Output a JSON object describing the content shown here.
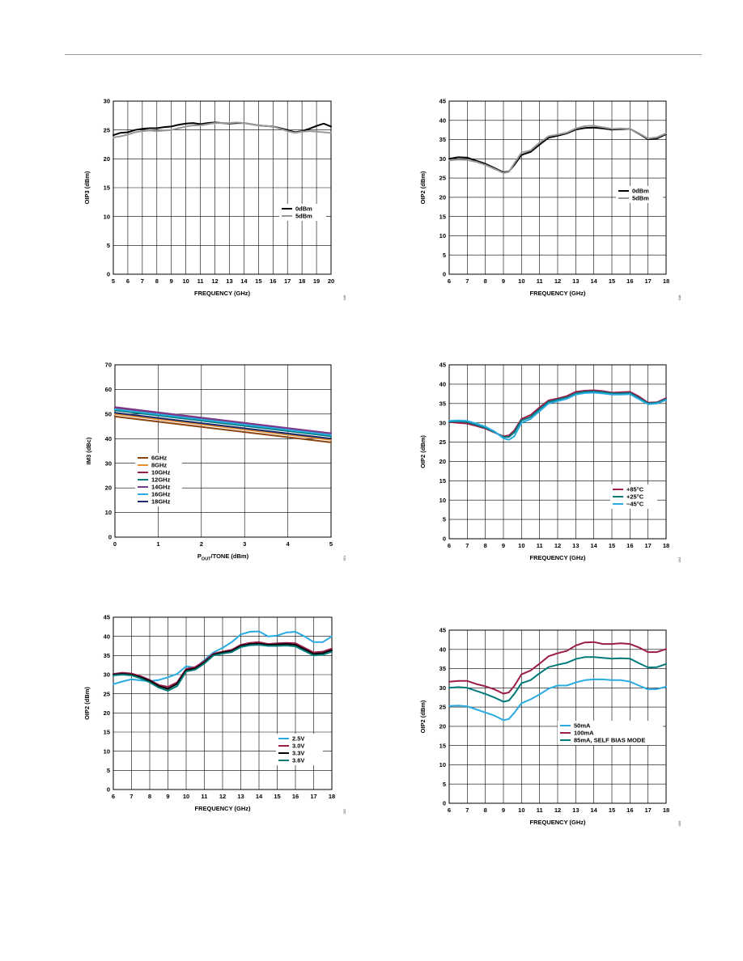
{
  "chart_data": [
    {
      "id": "c1",
      "type": "line",
      "xlabel": "FREQUENCY (GHz)",
      "ylabel": "OIP3 (dBm)",
      "xlim": [
        5,
        20
      ],
      "ylim": [
        0,
        30
      ],
      "xticks": [
        5,
        6,
        7,
        8,
        9,
        10,
        11,
        12,
        13,
        14,
        15,
        16,
        17,
        18,
        19,
        20
      ],
      "yticks": [
        0,
        5,
        10,
        15,
        20,
        25,
        30
      ],
      "grid": true,
      "legend_position": "right-middle",
      "fig_id": "046",
      "series": [
        {
          "name": "0dBm",
          "color": "#000000",
          "x": [
            5,
            5.5,
            6,
            6.5,
            7,
            7.5,
            8,
            8.5,
            9,
            9.5,
            10,
            10.5,
            11,
            11.5,
            12,
            12.5,
            13,
            13.5,
            14,
            14.5,
            15,
            15.5,
            16,
            16.5,
            17,
            17.5,
            18,
            18.5,
            19,
            19.5,
            20
          ],
          "y": [
            24.1,
            24.5,
            24.6,
            25.0,
            25.2,
            25.3,
            25.3,
            25.5,
            25.6,
            25.9,
            26.1,
            26.2,
            26.0,
            26.2,
            26.3,
            26.2,
            26.1,
            26.2,
            26.2,
            26.0,
            25.8,
            25.7,
            25.6,
            25.3,
            25.0,
            24.6,
            24.8,
            25.2,
            25.7,
            26.1,
            25.6
          ]
        },
        {
          "name": "5dBm",
          "color": "#999999",
          "x": [
            5,
            5.5,
            6,
            6.5,
            7,
            7.5,
            8,
            8.5,
            9,
            9.5,
            10,
            10.5,
            11,
            11.5,
            12,
            12.5,
            13,
            13.5,
            14,
            14.5,
            15,
            15.5,
            16,
            16.5,
            17,
            17.5,
            18,
            18.5,
            19,
            19.5,
            20
          ],
          "y": [
            23.7,
            23.9,
            24.2,
            24.6,
            24.8,
            24.9,
            24.8,
            24.9,
            25.0,
            25.3,
            25.6,
            25.8,
            25.8,
            26.0,
            26.2,
            26.2,
            26.2,
            26.3,
            26.2,
            26.0,
            25.8,
            25.7,
            25.6,
            25.2,
            24.8,
            24.5,
            24.7,
            24.8,
            24.7,
            24.6,
            24.5
          ]
        }
      ]
    },
    {
      "id": "c2",
      "type": "line",
      "xlabel": "FREQUENCY (GHz)",
      "ylabel": "OIP2 (dBm)",
      "xlim": [
        6,
        18
      ],
      "ylim": [
        0,
        45
      ],
      "xticks": [
        6,
        7,
        8,
        9,
        10,
        11,
        12,
        13,
        14,
        15,
        16,
        17,
        18
      ],
      "yticks": [
        0,
        5,
        10,
        15,
        20,
        25,
        30,
        35,
        40,
        45
      ],
      "grid": true,
      "legend_position": "right-middle",
      "fig_id": "048",
      "series": [
        {
          "name": "0dBm",
          "color": "#000000",
          "x": [
            6,
            6.5,
            7,
            7.5,
            8,
            8.5,
            9,
            9.3,
            9.6,
            10,
            10.5,
            11,
            11.5,
            12,
            12.5,
            13,
            13.5,
            14,
            14.5,
            15,
            15.5,
            16,
            16.5,
            17,
            17.5,
            18
          ],
          "y": [
            30.0,
            30.4,
            30.3,
            29.5,
            28.7,
            27.6,
            26.5,
            26.7,
            28.4,
            31.0,
            31.8,
            33.7,
            35.5,
            36.0,
            36.6,
            37.6,
            38.0,
            38.1,
            37.9,
            37.6,
            37.7,
            37.8,
            36.5,
            35.1,
            35.3,
            36.4
          ]
        },
        {
          "name": "5dBm",
          "color": "#999999",
          "x": [
            6,
            6.5,
            7,
            7.5,
            8,
            8.5,
            9,
            9.3,
            9.6,
            10,
            10.5,
            11,
            11.5,
            12,
            12.5,
            13,
            13.5,
            14,
            14.5,
            15,
            15.5,
            16,
            16.5,
            17,
            17.5,
            18
          ],
          "y": [
            29.6,
            29.8,
            29.7,
            29.2,
            28.4,
            27.4,
            26.3,
            26.6,
            28.8,
            31.6,
            32.2,
            34.2,
            35.9,
            36.3,
            36.8,
            37.9,
            38.5,
            38.6,
            38.2,
            37.8,
            37.9,
            37.8,
            36.6,
            35.3,
            35.6,
            36.6
          ]
        }
      ]
    },
    {
      "id": "c3",
      "type": "line",
      "xlabel": "POUT/TONE (dBm)",
      "xlabel_parts": [
        "P",
        "OUT",
        "/TONE (dBm)"
      ],
      "ylabel": "IM3 (dBc)",
      "xlim": [
        0,
        5
      ],
      "ylim": [
        0,
        70
      ],
      "xticks": [
        0,
        1,
        2,
        3,
        4,
        5
      ],
      "yticks": [
        0,
        10,
        20,
        30,
        40,
        50,
        60,
        70
      ],
      "grid": true,
      "legend_position": "left-middle",
      "fig_id": "051",
      "series": [
        {
          "name": "6GHz",
          "color": "#8b4513",
          "x": [
            0,
            5
          ],
          "y": [
            49.0,
            38.5
          ]
        },
        {
          "name": "8GHz",
          "color": "#e8902e",
          "x": [
            0,
            5
          ],
          "y": [
            50.0,
            39.5
          ]
        },
        {
          "name": "10GHz",
          "color": "#9b1d4d",
          "x": [
            0,
            5
          ],
          "y": [
            52.5,
            42.0
          ]
        },
        {
          "name": "12GHz",
          "color": "#007a7a",
          "x": [
            0,
            5
          ],
          "y": [
            51.5,
            41.0
          ]
        },
        {
          "name": "14GHz",
          "color": "#7b3a8c",
          "x": [
            0,
            5
          ],
          "y": [
            52.8,
            42.2
          ]
        },
        {
          "name": "16GHz",
          "color": "#29abe2",
          "x": [
            0,
            5
          ],
          "y": [
            52.0,
            41.5
          ]
        },
        {
          "name": "18GHz",
          "color": "#1a2a6c",
          "x": [
            0,
            5
          ],
          "y": [
            50.5,
            40.0
          ]
        }
      ]
    },
    {
      "id": "c4",
      "type": "line",
      "xlabel": "FREQUENCY (GHz)",
      "ylabel": "OIP2 (dBm)",
      "xlim": [
        6,
        18
      ],
      "ylim": [
        0,
        45
      ],
      "xticks": [
        6,
        7,
        8,
        9,
        10,
        11,
        12,
        13,
        14,
        15,
        16,
        17,
        18
      ],
      "yticks": [
        0,
        5,
        10,
        15,
        20,
        25,
        30,
        35,
        40,
        45
      ],
      "grid": true,
      "legend_position": "bottom-right",
      "fig_id": "054",
      "series": [
        {
          "name": "+85°C",
          "color": "#9b1d4d",
          "x": [
            6,
            6.5,
            7,
            7.5,
            8,
            8.5,
            9,
            9.3,
            9.6,
            10,
            10.5,
            11,
            11.5,
            12,
            12.5,
            13,
            13.5,
            14,
            14.5,
            15,
            15.5,
            16,
            16.5,
            17,
            17.5,
            18
          ],
          "y": [
            30.2,
            30.0,
            29.8,
            29.2,
            28.5,
            27.5,
            26.5,
            26.7,
            28.0,
            31.0,
            32.0,
            34.0,
            35.8,
            36.3,
            36.9,
            38.0,
            38.3,
            38.4,
            38.2,
            37.8,
            37.9,
            38.0,
            36.8,
            35.2,
            35.3,
            36.4
          ]
        },
        {
          "name": "+25°C",
          "color": "#007a7a",
          "x": [
            6,
            6.5,
            7,
            7.5,
            8,
            8.5,
            9,
            9.3,
            9.6,
            10,
            10.5,
            11,
            11.5,
            12,
            12.5,
            13,
            13.5,
            14,
            14.5,
            15,
            15.5,
            16,
            16.5,
            17,
            17.5,
            18
          ],
          "y": [
            30.3,
            30.4,
            30.2,
            29.5,
            28.7,
            27.6,
            26.3,
            26.3,
            27.5,
            30.6,
            31.5,
            33.5,
            35.4,
            36.0,
            36.5,
            37.6,
            38.0,
            38.1,
            37.9,
            37.6,
            37.6,
            37.7,
            36.4,
            35.0,
            35.2,
            36.1
          ]
        },
        {
          "name": "−45°C",
          "color": "#29abe2",
          "x": [
            6,
            6.5,
            7,
            7.5,
            8,
            8.5,
            9,
            9.3,
            9.6,
            10,
            10.5,
            11,
            11.5,
            12,
            12.5,
            13,
            13.5,
            14,
            14.5,
            15,
            15.5,
            16,
            16.5,
            17,
            17.5,
            18
          ],
          "y": [
            30.5,
            30.6,
            30.5,
            29.8,
            29.0,
            27.8,
            26.0,
            25.6,
            26.5,
            30.0,
            31.0,
            33.0,
            35.0,
            35.6,
            36.2,
            37.3,
            37.7,
            37.8,
            37.6,
            37.3,
            37.3,
            37.4,
            36.1,
            34.8,
            35.0,
            35.9
          ]
        }
      ]
    },
    {
      "id": "c5",
      "type": "line",
      "xlabel": "FREQUENCY (GHz)",
      "ylabel": "OIP2 (dBm)",
      "xlim": [
        6,
        18
      ],
      "ylim": [
        0,
        45
      ],
      "xticks": [
        6,
        7,
        8,
        9,
        10,
        11,
        12,
        13,
        14,
        15,
        16,
        17,
        18
      ],
      "yticks": [
        0,
        5,
        10,
        15,
        20,
        25,
        30,
        35,
        40,
        45
      ],
      "grid": true,
      "legend_position": "bottom-right",
      "fig_id": "052",
      "series": [
        {
          "name": "2.5V",
          "color": "#29abe2",
          "x": [
            6,
            6.5,
            7,
            7.5,
            8,
            8.5,
            9,
            9.5,
            10,
            10.5,
            11,
            11.5,
            12,
            12.5,
            13,
            13.5,
            14,
            14.5,
            15,
            15.5,
            16,
            16.5,
            17,
            17.5,
            18
          ],
          "y": [
            27.5,
            28.2,
            28.8,
            28.5,
            28.3,
            28.6,
            29.3,
            30.2,
            32.2,
            31.8,
            33.8,
            35.8,
            37.0,
            38.5,
            40.5,
            41.2,
            41.3,
            40.0,
            40.2,
            41.0,
            41.2,
            40.0,
            38.5,
            38.5,
            40.0
          ]
        },
        {
          "name": "3.0V",
          "color": "#9b1d4d",
          "x": [
            6,
            6.5,
            7,
            7.5,
            8,
            8.5,
            9,
            9.5,
            10,
            10.5,
            11,
            11.5,
            12,
            12.5,
            13,
            13.5,
            14,
            14.5,
            15,
            15.5,
            16,
            16.5,
            17,
            17.5,
            18
          ],
          "y": [
            30.2,
            30.5,
            30.3,
            29.6,
            28.6,
            27.3,
            26.8,
            28.0,
            31.5,
            32.0,
            33.5,
            35.5,
            36.0,
            36.5,
            37.8,
            38.3,
            38.5,
            38.0,
            38.2,
            38.3,
            38.2,
            37.0,
            35.8,
            36.0,
            36.8
          ]
        },
        {
          "name": "3.3V",
          "color": "#000000",
          "x": [
            6,
            6.5,
            7,
            7.5,
            8,
            8.5,
            9,
            9.5,
            10,
            10.5,
            11,
            11.5,
            12,
            12.5,
            13,
            13.5,
            14,
            14.5,
            15,
            15.5,
            16,
            16.5,
            17,
            17.5,
            18
          ],
          "y": [
            30.0,
            30.2,
            30.0,
            29.3,
            28.4,
            27.0,
            26.3,
            27.6,
            31.2,
            31.6,
            33.2,
            35.2,
            35.8,
            36.2,
            37.5,
            38.0,
            38.1,
            37.8,
            37.9,
            38.0,
            37.8,
            36.6,
            35.4,
            35.6,
            36.4
          ]
        },
        {
          "name": "3.6V",
          "color": "#007a7a",
          "x": [
            6,
            6.5,
            7,
            7.5,
            8,
            8.5,
            9,
            9.5,
            10,
            10.5,
            11,
            11.5,
            12,
            12.5,
            13,
            13.5,
            14,
            14.5,
            15,
            15.5,
            16,
            16.5,
            17,
            17.5,
            18
          ],
          "y": [
            29.8,
            30.0,
            29.8,
            29.0,
            28.0,
            26.6,
            25.8,
            27.0,
            30.8,
            31.3,
            32.9,
            35.0,
            35.5,
            35.9,
            37.2,
            37.7,
            37.8,
            37.5,
            37.5,
            37.6,
            37.4,
            36.2,
            35.0,
            35.2,
            36.0
          ]
        }
      ]
    },
    {
      "id": "c6",
      "type": "line",
      "xlabel": "FREQUENCY (GHz)",
      "ylabel": "OIP2 (dBm)",
      "xlim": [
        6,
        18
      ],
      "ylim": [
        0,
        45
      ],
      "xticks": [
        6,
        7,
        8,
        9,
        10,
        11,
        12,
        13,
        14,
        15,
        16,
        17,
        18
      ],
      "yticks": [
        0,
        5,
        10,
        15,
        20,
        25,
        30,
        35,
        40,
        45
      ],
      "grid": true,
      "legend_position": "bottom-right",
      "fig_id": "056",
      "series": [
        {
          "name": "50mA",
          "color": "#29abe2",
          "x": [
            6,
            6.5,
            7,
            7.5,
            8,
            8.5,
            9,
            9.3,
            9.6,
            10,
            10.5,
            11,
            11.5,
            12,
            12.5,
            13,
            13.5,
            14,
            14.5,
            15,
            15.5,
            16,
            16.5,
            17,
            17.5,
            18
          ],
          "y": [
            25.3,
            25.4,
            25.2,
            24.4,
            23.6,
            22.8,
            21.6,
            21.9,
            23.5,
            26.0,
            27.0,
            28.3,
            29.8,
            30.6,
            30.6,
            31.4,
            32.0,
            32.2,
            32.2,
            32.0,
            32.0,
            31.6,
            30.6,
            29.6,
            29.7,
            30.3
          ]
        },
        {
          "name": "100mA",
          "color": "#9b1d4d",
          "x": [
            6,
            6.5,
            7,
            7.5,
            8,
            8.5,
            9,
            9.3,
            9.6,
            10,
            10.5,
            11,
            11.5,
            12,
            12.5,
            13,
            13.5,
            14,
            14.5,
            15,
            15.5,
            16,
            16.5,
            17,
            17.5,
            18
          ],
          "y": [
            31.6,
            31.8,
            31.8,
            31.0,
            30.4,
            29.6,
            28.5,
            28.8,
            30.5,
            33.5,
            34.5,
            36.3,
            38.2,
            39.0,
            39.6,
            41.0,
            41.8,
            41.9,
            41.4,
            41.4,
            41.6,
            41.4,
            40.5,
            39.3,
            39.3,
            40.1
          ]
        },
        {
          "name": "85mA, SELF BIAS MODE",
          "color": "#007a7a",
          "x": [
            6,
            6.5,
            7,
            7.5,
            8,
            8.5,
            9,
            9.3,
            9.6,
            10,
            10.5,
            11,
            11.5,
            12,
            12.5,
            13,
            13.5,
            14,
            14.5,
            15,
            15.5,
            16,
            16.5,
            17,
            17.5,
            18
          ],
          "y": [
            30.0,
            30.2,
            30.0,
            29.2,
            28.4,
            27.5,
            26.4,
            26.7,
            28.4,
            31.2,
            32.0,
            33.8,
            35.4,
            36.0,
            36.5,
            37.5,
            38.0,
            38.0,
            37.8,
            37.6,
            37.7,
            37.6,
            36.4,
            35.3,
            35.4,
            36.2
          ]
        }
      ]
    }
  ]
}
